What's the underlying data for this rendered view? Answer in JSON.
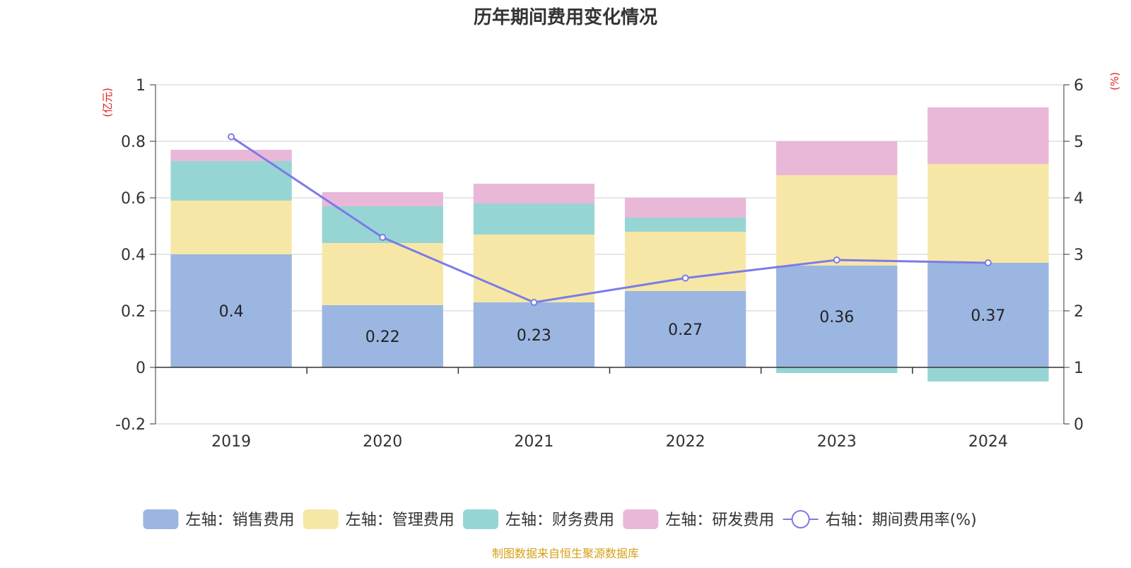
{
  "chart_data": {
    "type": "bar+line",
    "title": "历年期间费用变化情况",
    "left_unit": "(亿元)",
    "right_unit": "(%)",
    "categories": [
      "2019",
      "2020",
      "2021",
      "2022",
      "2023",
      "2024"
    ],
    "left_axis": {
      "ylim": [
        -0.2,
        1
      ],
      "ticks": [
        -0.2,
        0,
        0.2,
        0.4,
        0.6,
        0.8,
        1
      ]
    },
    "right_axis": {
      "ylim": [
        0,
        6
      ],
      "ticks": [
        0,
        1,
        2,
        3,
        4,
        5,
        6
      ]
    },
    "series": [
      {
        "name": "左轴：销售费用",
        "kind": "bar",
        "axis": "left",
        "color": "#9bb6e1",
        "values": [
          0.4,
          0.22,
          0.23,
          0.27,
          0.36,
          0.37
        ],
        "labels": [
          "0.4",
          "0.22",
          "0.23",
          "0.27",
          "0.36",
          "0.37"
        ]
      },
      {
        "name": "左轴：管理费用",
        "kind": "bar",
        "axis": "left",
        "color": "#f7e7a6",
        "values": [
          0.19,
          0.22,
          0.24,
          0.21,
          0.32,
          0.35
        ]
      },
      {
        "name": "左轴：财务费用",
        "kind": "bar",
        "axis": "left",
        "color": "#97d5d5",
        "values": [
          0.14,
          0.13,
          0.11,
          0.05,
          -0.02,
          -0.05
        ]
      },
      {
        "name": "左轴：研发费用",
        "kind": "bar",
        "axis": "left",
        "color": "#e9b8d9",
        "values": [
          0.04,
          0.05,
          0.07,
          0.07,
          0.12,
          0.2
        ]
      },
      {
        "name": "右轴：期间费用率(%)",
        "kind": "line",
        "axis": "right",
        "color": "#7b7be8",
        "values": [
          5.08,
          3.3,
          2.15,
          2.58,
          2.9,
          2.85
        ]
      }
    ],
    "grid": true,
    "legend_position": "bottom"
  },
  "footer": {
    "source": "制图数据来自恒生聚源数据库"
  }
}
